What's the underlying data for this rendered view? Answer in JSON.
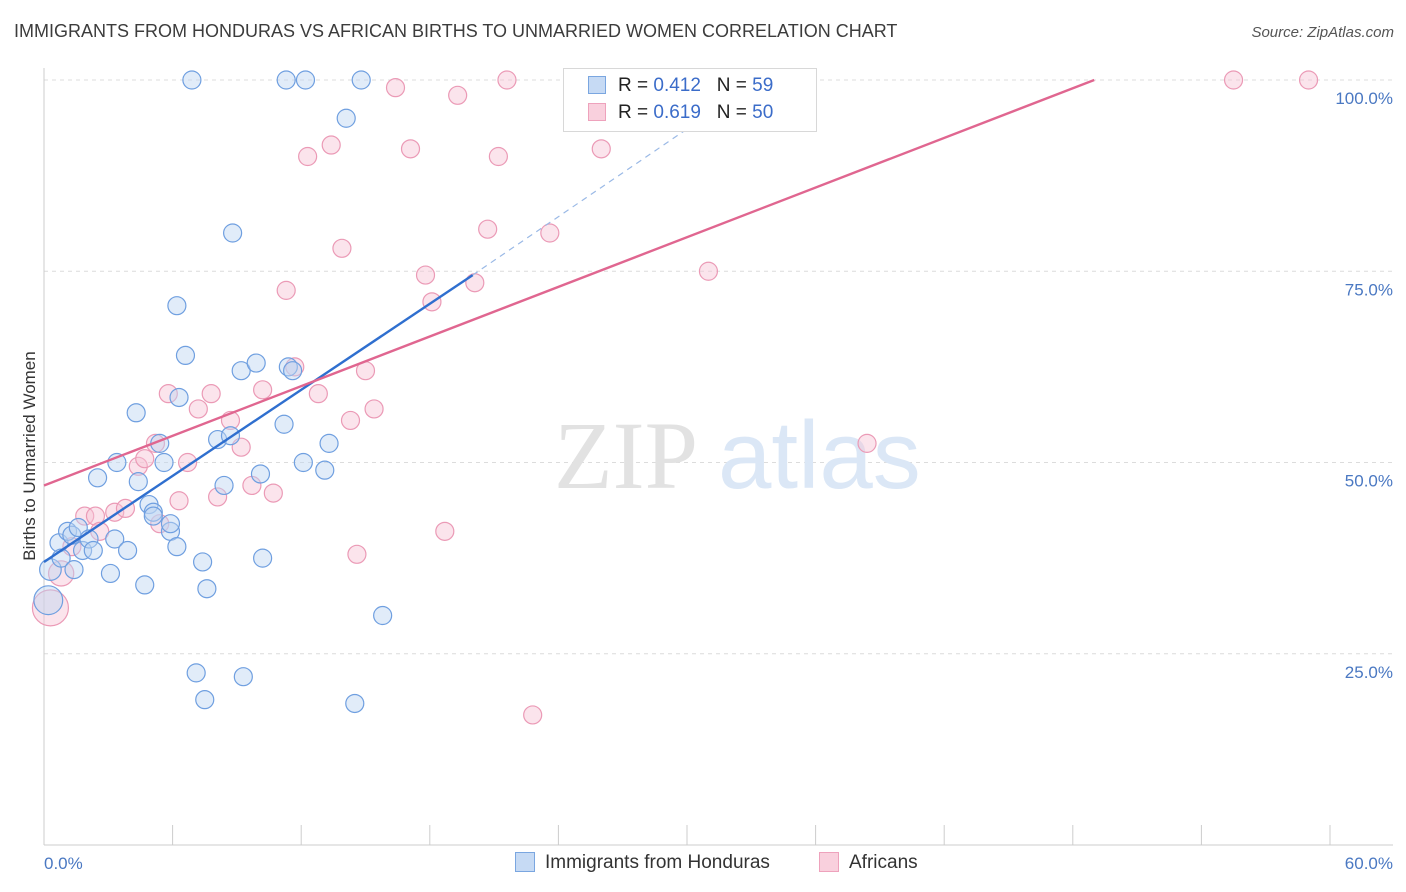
{
  "header": {
    "title": "IMMIGRANTS FROM HONDURAS VS AFRICAN BIRTHS TO UNMARRIED WOMEN CORRELATION CHART",
    "source": "Source: ZipAtlas.com"
  },
  "watermark": {
    "zip": "ZIP",
    "atlas": "atlas"
  },
  "legend": {
    "r_label": "R =",
    "n_label": "N =",
    "rows": [
      {
        "r": "0.412",
        "n": "59"
      },
      {
        "r": "0.619",
        "n": "50"
      }
    ]
  },
  "chart_data": {
    "type": "scatter",
    "title": "IMMIGRANTS FROM HONDURAS VS AFRICAN BIRTHS TO UNMARRIED WOMEN CORRELATION CHART",
    "ylabel": "Births to Unmarried Women",
    "xlabel": "",
    "xlim": [
      0,
      60
    ],
    "ylim": [
      0,
      100
    ],
    "x_tick_labels": [
      "0.0%",
      "60.0%"
    ],
    "y_ticks": [
      25,
      50,
      75,
      100
    ],
    "y_tick_labels": [
      "25.0%",
      "50.0%",
      "75.0%",
      "100.0%"
    ],
    "grid": "horizontal dashed",
    "legend_position": "top-center",
    "colors": {
      "honduras": "#6f9fe0",
      "africans": "#f0a0bb",
      "honduras_line": "#2f6fcf",
      "africans_line": "#e06690"
    },
    "series": [
      {
        "name": "Immigrants from Honduras",
        "r": 0.412,
        "n": 59,
        "trend": {
          "x0": 0,
          "y0": 37,
          "x1": 20,
          "y1": 74.5,
          "dashed_to_x": 31,
          "dashed_to_y": 95.5
        },
        "points": [
          [
            0.2,
            32,
            1.6
          ],
          [
            0.3,
            36,
            1.2
          ],
          [
            0.7,
            39.5,
            1
          ],
          [
            0.8,
            37.5,
            1
          ],
          [
            1.1,
            41,
            1
          ],
          [
            1.3,
            40.5,
            1
          ],
          [
            1.4,
            36,
            1
          ],
          [
            1.6,
            41.5,
            1
          ],
          [
            1.8,
            38.5,
            1
          ],
          [
            2.1,
            40,
            1
          ],
          [
            2.3,
            38.5,
            1
          ],
          [
            2.5,
            48,
            1
          ],
          [
            3.1,
            35.5,
            1
          ],
          [
            3.3,
            40,
            1
          ],
          [
            3.4,
            50,
            1
          ],
          [
            3.9,
            38.5,
            1
          ],
          [
            4.3,
            56.5,
            1
          ],
          [
            4.4,
            47.5,
            1
          ],
          [
            4.7,
            34,
            1
          ],
          [
            4.9,
            44.5,
            1
          ],
          [
            5.1,
            43.5,
            1
          ],
          [
            5.1,
            43,
            1
          ],
          [
            5.4,
            52.5,
            1
          ],
          [
            5.6,
            50,
            1
          ],
          [
            5.9,
            41,
            1
          ],
          [
            5.9,
            42,
            1
          ],
          [
            6.2,
            39,
            1
          ],
          [
            6.2,
            70.5,
            1
          ],
          [
            6.3,
            58.5,
            1
          ],
          [
            6.6,
            64,
            1
          ],
          [
            6.9,
            100,
            1
          ],
          [
            7.1,
            22.5,
            1
          ],
          [
            7.4,
            37,
            1
          ],
          [
            7.5,
            19,
            1
          ],
          [
            7.6,
            33.5,
            1
          ],
          [
            8.1,
            53,
            1
          ],
          [
            8.4,
            47,
            1
          ],
          [
            8.7,
            53.5,
            1
          ],
          [
            8.8,
            80,
            1
          ],
          [
            9.2,
            62,
            1
          ],
          [
            9.3,
            22,
            1
          ],
          [
            9.9,
            63,
            1
          ],
          [
            10.1,
            48.5,
            1
          ],
          [
            10.2,
            37.5,
            1
          ],
          [
            11.2,
            55,
            1
          ],
          [
            11.3,
            100,
            1
          ],
          [
            11.4,
            62.5,
            1
          ],
          [
            11.6,
            62,
            1
          ],
          [
            12.1,
            50,
            1
          ],
          [
            12.2,
            100,
            1
          ],
          [
            13.1,
            49,
            1
          ],
          [
            13.3,
            52.5,
            1
          ],
          [
            14.1,
            95,
            1
          ],
          [
            14.5,
            18.5,
            1
          ],
          [
            14.8,
            100,
            1
          ],
          [
            15.8,
            30,
            1
          ]
        ]
      },
      {
        "name": "Africans",
        "r": 0.619,
        "n": 50,
        "trend": {
          "x0": 0,
          "y0": 47,
          "x1": 49,
          "y1": 100
        },
        "points": [
          [
            0.3,
            31,
            2
          ],
          [
            0.8,
            35.5,
            1.4
          ],
          [
            1.3,
            39,
            1
          ],
          [
            1.9,
            43,
            1
          ],
          [
            2.4,
            43,
            1
          ],
          [
            2.6,
            41,
            1
          ],
          [
            3.3,
            43.5,
            1
          ],
          [
            3.8,
            44,
            1
          ],
          [
            4.4,
            49.5,
            1
          ],
          [
            4.7,
            50.5,
            1
          ],
          [
            5.2,
            52.5,
            1
          ],
          [
            5.4,
            42,
            1
          ],
          [
            5.8,
            59,
            1
          ],
          [
            6.3,
            45,
            1
          ],
          [
            6.7,
            50,
            1
          ],
          [
            7.2,
            57,
            1
          ],
          [
            7.8,
            59,
            1
          ],
          [
            8.1,
            45.5,
            1
          ],
          [
            8.7,
            55.5,
            1
          ],
          [
            9.2,
            52,
            1
          ],
          [
            9.7,
            47,
            1
          ],
          [
            10.2,
            59.5,
            1
          ],
          [
            10.7,
            46,
            1
          ],
          [
            11.3,
            72.5,
            1
          ],
          [
            11.7,
            62.5,
            1
          ],
          [
            12.3,
            90,
            1
          ],
          [
            12.8,
            59,
            1
          ],
          [
            13.4,
            91.5,
            1
          ],
          [
            13.9,
            78,
            1
          ],
          [
            14.3,
            55.5,
            1
          ],
          [
            14.6,
            38,
            1
          ],
          [
            15.0,
            62,
            1
          ],
          [
            15.4,
            57,
            1
          ],
          [
            16.4,
            99,
            1
          ],
          [
            17.1,
            91,
            1
          ],
          [
            17.8,
            74.5,
            1
          ],
          [
            18.1,
            71,
            1
          ],
          [
            18.7,
            41,
            1
          ],
          [
            19.3,
            98,
            1
          ],
          [
            20.1,
            73.5,
            1
          ],
          [
            20.7,
            80.5,
            1
          ],
          [
            21.2,
            90,
            1
          ],
          [
            21.6,
            100,
            1
          ],
          [
            22.8,
            17,
            1
          ],
          [
            23.6,
            80,
            1
          ],
          [
            26,
            91,
            1
          ],
          [
            31,
            75,
            1
          ],
          [
            33,
            100,
            1
          ],
          [
            38.4,
            52.5,
            1
          ],
          [
            55.5,
            100,
            1
          ],
          [
            59,
            100,
            1
          ]
        ]
      }
    ]
  },
  "bottom_legend": [
    "Immigrants from Honduras",
    "Africans"
  ]
}
